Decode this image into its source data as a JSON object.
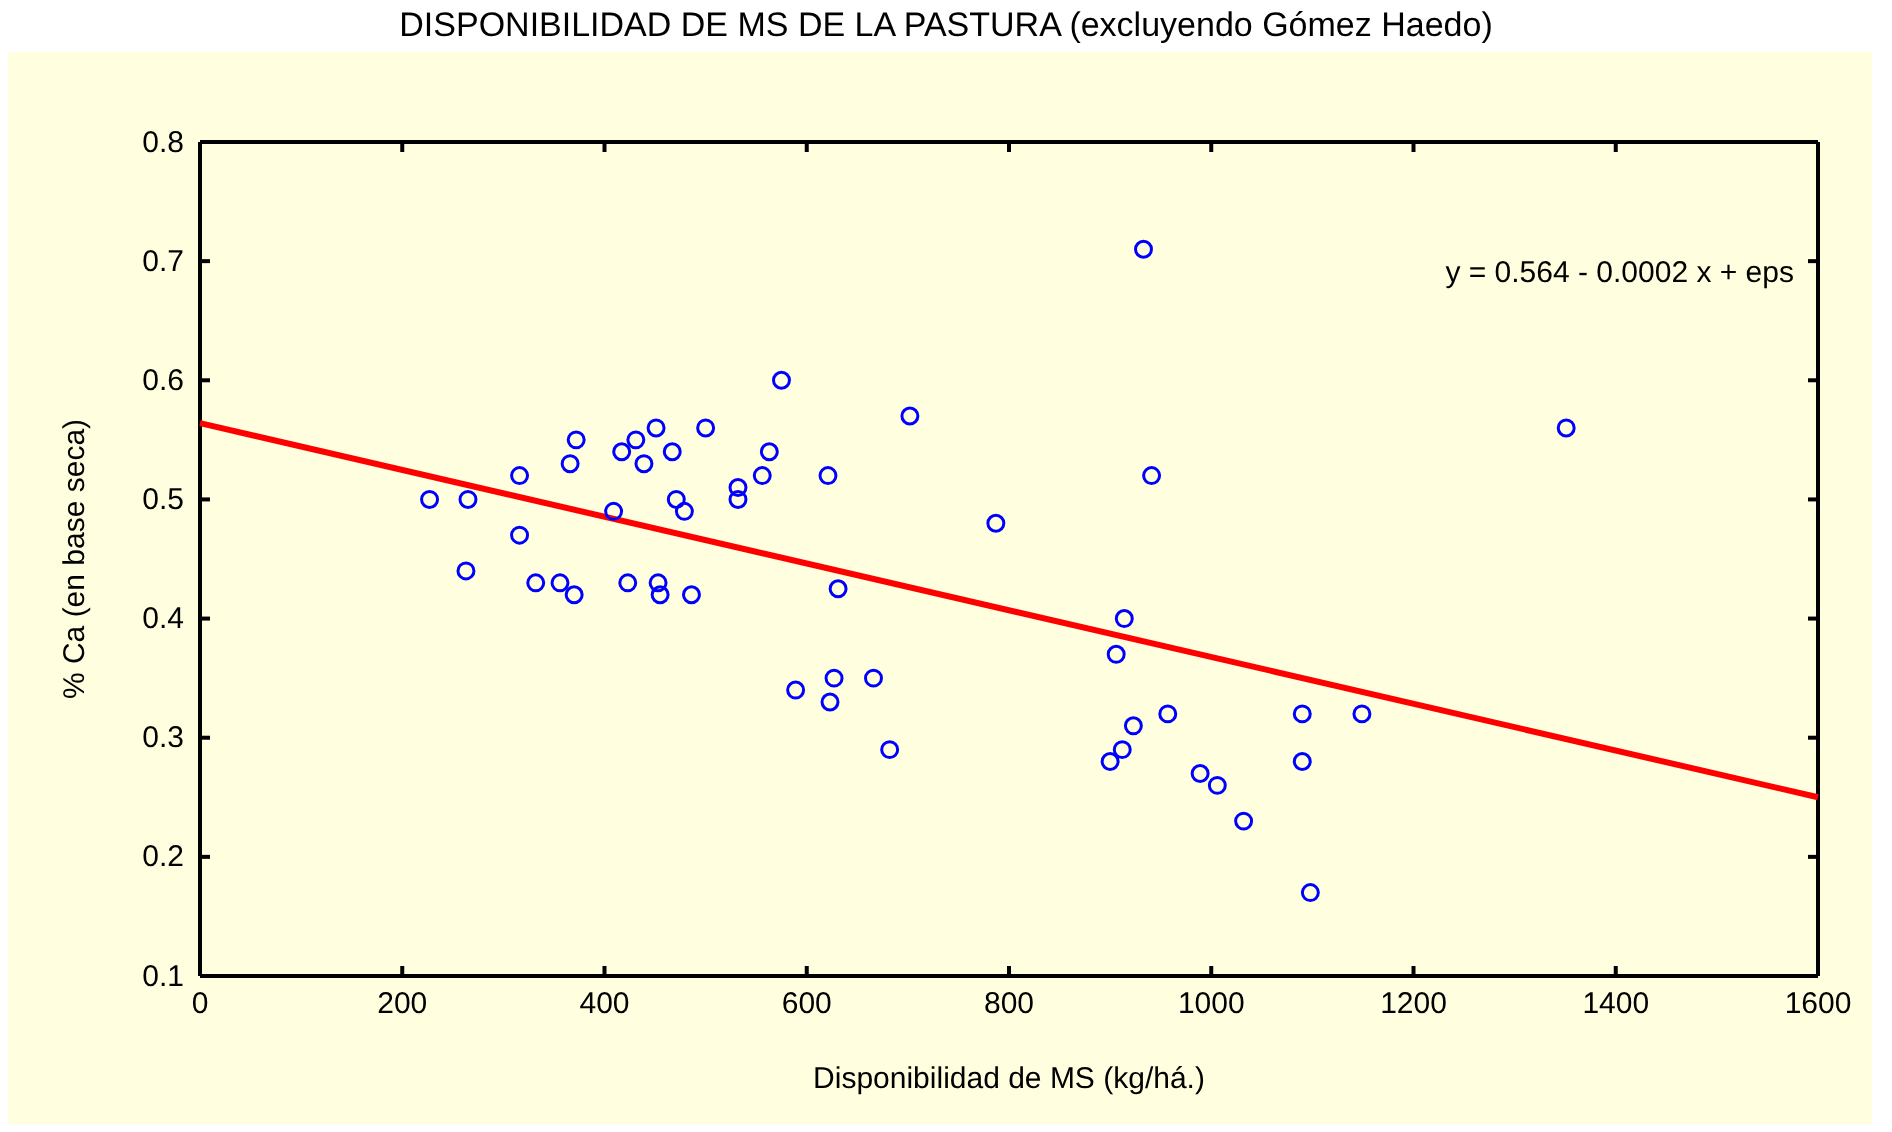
{
  "chart_data": {
    "type": "scatter",
    "title": "DISPONIBILIDAD DE MS DE LA PASTURA (excluyendo Gómez Haedo)",
    "xlabel": "Disponibilidad de MS (kg/há.)",
    "ylabel": "% Ca (en base seca)",
    "xlim": [
      0,
      1600
    ],
    "ylim": [
      0.1,
      0.8
    ],
    "xticks": [
      0,
      200,
      400,
      600,
      800,
      1000,
      1200,
      1400,
      1600
    ],
    "yticks": [
      0.1,
      0.2,
      0.3,
      0.4,
      0.5,
      0.6,
      0.7,
      0.8
    ],
    "grid": false,
    "annotations": [
      "y = 0.564 - 0.0002 x + eps"
    ],
    "series": [
      {
        "marker": "circle",
        "color": "#0000ff",
        "x": [
          227,
          265,
          263,
          316,
          316,
          332,
          356,
          370,
          372,
          366,
          409,
          417,
          423,
          431,
          439,
          451,
          453,
          455,
          467,
          471,
          479,
          486,
          500,
          532,
          532,
          556,
          563,
          575,
          589,
          621,
          631,
          623,
          627,
          666,
          682,
          702,
          787,
          906,
          914,
          912,
          900,
          923,
          933,
          941,
          957,
          989,
          1006,
          1032,
          1090,
          1090,
          1098,
          1149,
          1351
        ],
        "values": [
          0.5,
          0.5,
          0.44,
          0.52,
          0.47,
          0.43,
          0.43,
          0.42,
          0.55,
          0.53,
          0.49,
          0.54,
          0.43,
          0.55,
          0.53,
          0.56,
          0.43,
          0.42,
          0.54,
          0.5,
          0.49,
          0.42,
          0.56,
          0.51,
          0.5,
          0.52,
          0.54,
          0.6,
          0.34,
          0.52,
          0.425,
          0.33,
          0.35,
          0.35,
          0.29,
          0.57,
          0.48,
          0.37,
          0.4,
          0.29,
          0.28,
          0.31,
          0.71,
          0.52,
          0.32,
          0.27,
          0.26,
          0.23,
          0.32,
          0.28,
          0.17,
          0.32,
          0.56
        ]
      },
      {
        "type": "line",
        "marker": "none",
        "color": "#ff0000",
        "x": [
          0,
          1600
        ],
        "values": [
          0.564,
          0.25
        ]
      }
    ]
  }
}
